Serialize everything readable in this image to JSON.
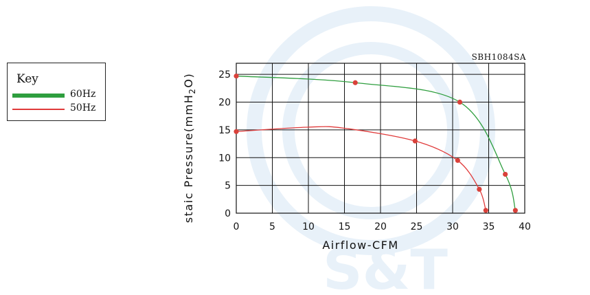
{
  "chart_data": {
    "type": "line",
    "title": "SBH1084SA",
    "xlabel": "Airflow-CFM",
    "ylabel_parts": [
      "staic Pressure(mmH",
      "2",
      "O)"
    ],
    "xlim": [
      0,
      40
    ],
    "ylim": [
      0,
      27
    ],
    "xticks": [
      0,
      5,
      10,
      15,
      20,
      25,
      30,
      35,
      40
    ],
    "yticks": [
      0,
      5,
      10,
      15,
      20,
      25
    ],
    "grid": true,
    "legend_position": "left",
    "legend_title": "Key",
    "series": [
      {
        "name": "60Hz",
        "color": "#2e9e3e",
        "x": [
          0,
          16.5,
          31,
          37.3,
          38.7
        ],
        "y": [
          24.7,
          23.5,
          20,
          7,
          0.5
        ],
        "markers": [
          [
            0,
            24.7
          ],
          [
            16.5,
            23.5
          ],
          [
            31,
            20
          ],
          [
            37.3,
            7
          ],
          [
            38.7,
            0.5
          ]
        ]
      },
      {
        "name": "50Hz",
        "color": "#e03a3a",
        "x": [
          0,
          10,
          15,
          24.8,
          30.7,
          33.7,
          34.6
        ],
        "y": [
          14.7,
          15.5,
          15.3,
          13.0,
          9.5,
          4.3,
          0.5
        ],
        "markers": [
          [
            0,
            14.7
          ],
          [
            24.8,
            13.0
          ],
          [
            30.7,
            9.5
          ],
          [
            33.7,
            4.3
          ],
          [
            34.6,
            0.5
          ]
        ]
      }
    ]
  },
  "legend": {
    "title": "Key",
    "items": [
      {
        "label": "60Hz",
        "color": "#2e9e3e"
      },
      {
        "label": "50Hz",
        "color": "#e03a3a"
      }
    ]
  },
  "watermark": {
    "text": "S&T",
    "color": "#e4eef7"
  }
}
